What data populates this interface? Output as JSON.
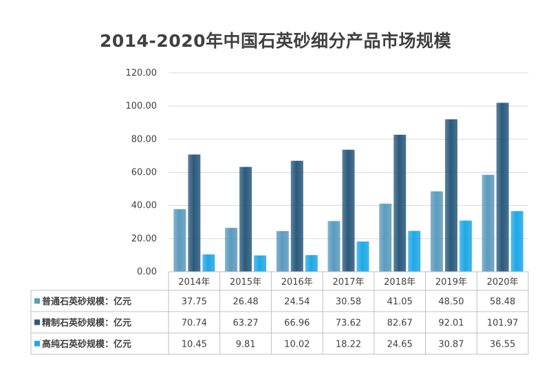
{
  "chart_data": {
    "type": "bar",
    "title": "2014-2020年中国石英砂细分产品市场规模",
    "categories": [
      "2014年",
      "2015年",
      "2016年",
      "2017年",
      "2018年",
      "2019年",
      "2020年"
    ],
    "ylim": [
      0,
      120
    ],
    "yticks": [
      "120.00",
      "100.00",
      "80.00",
      "60.00",
      "40.00",
      "20.00",
      "0.00"
    ],
    "ytick_values": [
      120,
      100,
      80,
      60,
      40,
      20,
      0
    ],
    "grid": true,
    "legend": "data-table",
    "series": [
      {
        "name": "普通石英砂规模：亿元",
        "color": "#5b9bbd",
        "values": [
          37.75,
          26.48,
          24.54,
          30.58,
          41.05,
          48.5,
          58.48
        ],
        "labels": [
          "37.75",
          "26.48",
          "24.54",
          "30.58",
          "41.05",
          "48.50",
          "58.48"
        ]
      },
      {
        "name": "精制石英砂规模：亿元",
        "color": "#2a5a7c",
        "values": [
          70.74,
          63.27,
          66.96,
          73.62,
          82.67,
          92.01,
          101.97
        ],
        "labels": [
          "70.74",
          "63.27",
          "66.96",
          "73.62",
          "82.67",
          "92.01",
          "101.97"
        ]
      },
      {
        "name": "高纯石英砂规模：亿元",
        "color": "#1fa8e6",
        "values": [
          10.45,
          9.81,
          10.02,
          18.22,
          24.65,
          30.87,
          36.55
        ],
        "labels": [
          "10.45",
          "9.81",
          "10.02",
          "18.22",
          "24.65",
          "30.87",
          "36.55"
        ]
      }
    ]
  }
}
